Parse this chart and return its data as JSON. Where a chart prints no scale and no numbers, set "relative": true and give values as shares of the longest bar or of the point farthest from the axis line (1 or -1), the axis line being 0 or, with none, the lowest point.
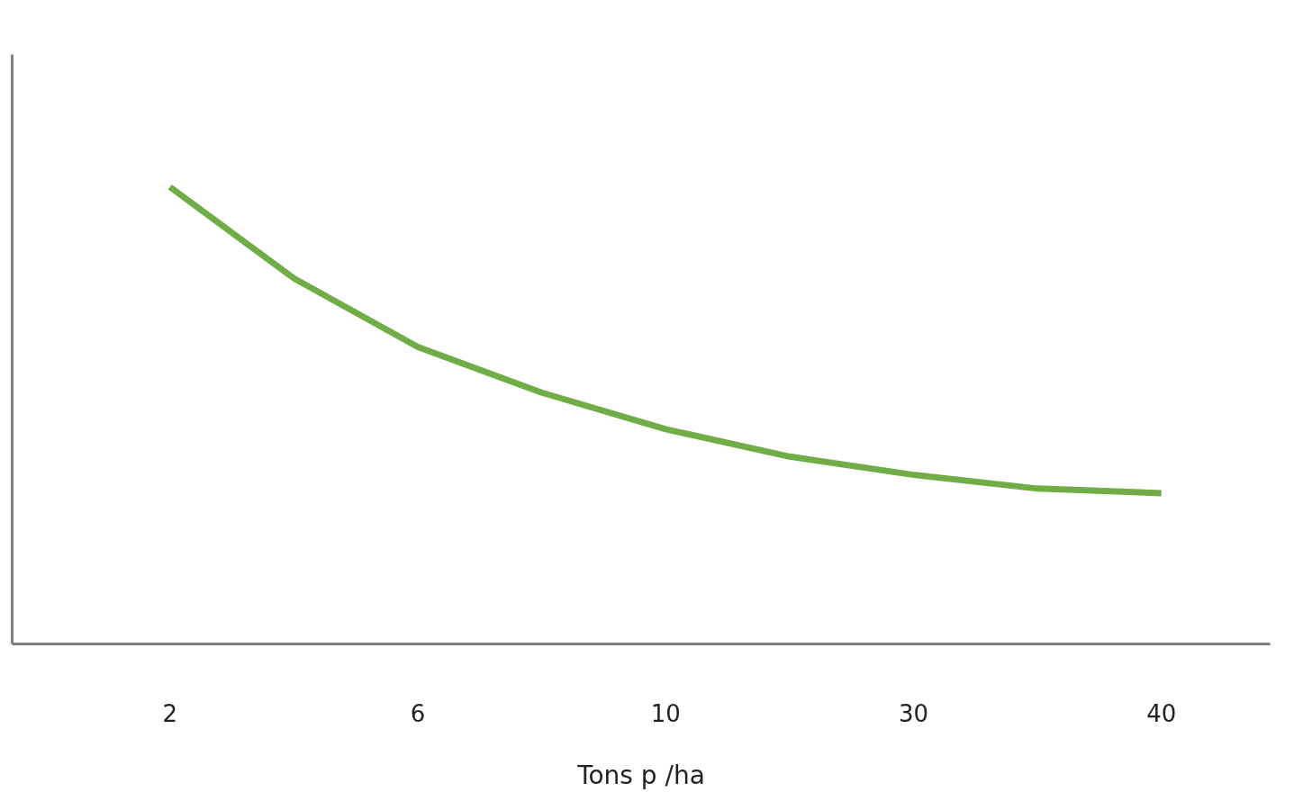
{
  "chart_data": {
    "type": "line",
    "relative": true,
    "xlabel": "Tons p /ha",
    "categories": [
      "2",
      null,
      "6",
      null,
      "10",
      null,
      "30",
      null,
      "40"
    ],
    "series": [
      {
        "color": "#70ad47",
        "values": [
          1,
          0.8,
          0.65,
          0.55,
          0.47,
          0.41,
          0.37,
          0.34,
          0.33
        ]
      }
    ],
    "grid": false,
    "marker": "none",
    "line_style": "solid"
  }
}
